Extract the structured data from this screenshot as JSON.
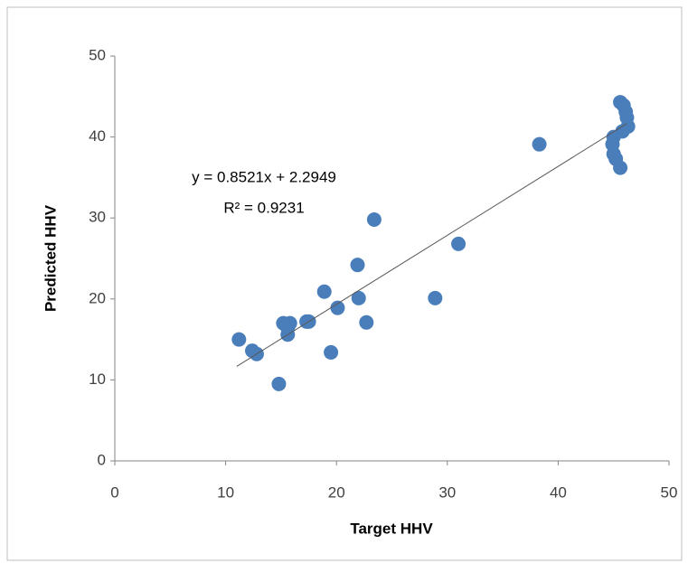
{
  "chart_data": {
    "type": "scatter",
    "x_label": "Target HHV",
    "y_label": "Predicted HHV",
    "xlim": [
      0,
      50
    ],
    "xticks": [
      0,
      10,
      20,
      30,
      40,
      50
    ],
    "ylim": [
      0,
      50
    ],
    "yticks": [
      0,
      10,
      20,
      30,
      40,
      50
    ],
    "grid": false,
    "series": [
      {
        "color": "#4a7ebb",
        "x": [
          11.2,
          12.4,
          12.8,
          14.8,
          15.2,
          15.6,
          15.6,
          15.8,
          17.3,
          17.5,
          18.9,
          19.5,
          20.1,
          21.9,
          22.0,
          22.7,
          23.4,
          28.9,
          31.0,
          38.3,
          45.6,
          45.6,
          45.9,
          46.1,
          46.2,
          46.3,
          45.8,
          45.0,
          44.9,
          45.0,
          45.2
        ],
        "values": [
          15.0,
          13.6,
          13.2,
          9.5,
          17.0,
          16.4,
          15.6,
          17.0,
          17.2,
          17.2,
          20.9,
          13.4,
          18.9,
          24.2,
          20.1,
          17.1,
          29.8,
          20.1,
          26.8,
          39.1,
          36.2,
          44.3,
          43.9,
          43.1,
          42.4,
          41.3,
          40.7,
          40.0,
          39.1,
          37.9,
          37.3
        ]
      }
    ],
    "trendline": {
      "color": "#595959",
      "x": [
        11,
        46.2
      ],
      "values": [
        11.67,
        41.66
      ]
    },
    "annotations": [
      "y = 0.8521x + 2.2949",
      "R² = 0.9231"
    ]
  }
}
